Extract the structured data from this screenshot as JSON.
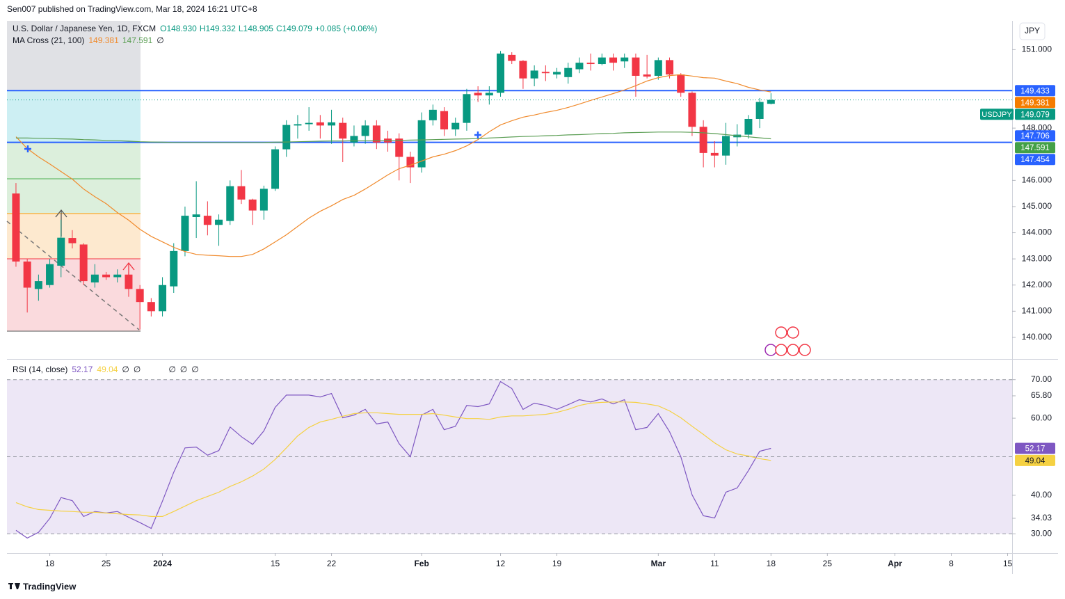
{
  "header": "Sen007 published on TradingView.com, Mar 18, 2024 16:21 UTC+8",
  "footer": "TradingView",
  "currency_button": "JPY",
  "chart_data": [
    {
      "type": "candlestick",
      "title": "U.S. Dollar / Japanese Yen, 1D, FXCM",
      "ohlc": [
        "O148.930",
        "H149.332",
        "L148.905",
        "C149.079",
        "+0.085 (+0.06%)"
      ],
      "indicator": {
        "name": "MA Cross (21, 100)",
        "values": [
          "149.381",
          "147.591",
          "∅"
        ]
      },
      "up_color": "#089981",
      "down_color": "#f23645",
      "x": [
        -3,
        -2,
        -1,
        0,
        1,
        2,
        3,
        4,
        5,
        6,
        7,
        8,
        9,
        10,
        11,
        12,
        13,
        14,
        15,
        16,
        17,
        18,
        19,
        20,
        21,
        22,
        23,
        24,
        25,
        26,
        27,
        28,
        29,
        30,
        31,
        32,
        33,
        34,
        35,
        36,
        37,
        38,
        39,
        40,
        41,
        42,
        43,
        44,
        45,
        46,
        47,
        48,
        49,
        50,
        51,
        52,
        53,
        54,
        55,
        56,
        57,
        58,
        59,
        60,
        61,
        62,
        63,
        64
      ],
      "open": [
        145.5,
        142.9,
        141.85,
        142.0,
        142.74,
        143.8,
        143.55,
        142.1,
        142.4,
        142.3,
        142.4,
        141.85,
        141.35,
        141.0,
        141.95,
        143.3,
        144.6,
        144.65,
        144.3,
        144.45,
        145.78,
        145.27,
        144.85,
        145.68,
        147.19,
        148.1,
        148.15,
        148.22,
        148.1,
        148.2,
        147.45,
        147.7,
        148.1,
        147.6,
        147.6,
        146.9,
        146.5,
        148.3,
        148.65,
        147.95,
        148.2,
        149.35,
        149.25,
        149.35,
        150.8,
        150.57,
        149.9,
        150.15,
        150.05,
        149.95,
        150.25,
        150.5,
        150.45,
        150.7,
        150.55,
        150.7,
        150.05,
        150.0,
        150.6,
        150.05,
        149.35,
        148.05,
        147.05,
        146.95,
        147.65,
        147.75,
        148.35,
        148.93
      ],
      "high": [
        145.9,
        143.0,
        142.4,
        143.0,
        144.5,
        144.1,
        143.6,
        142.8,
        142.5,
        142.6,
        142.5,
        142.0,
        141.5,
        142.3,
        143.6,
        145.0,
        145.97,
        145.2,
        144.7,
        146.0,
        146.4,
        145.3,
        145.8,
        147.3,
        148.3,
        148.5,
        148.8,
        148.5,
        148.7,
        148.4,
        148.1,
        148.3,
        148.3,
        147.9,
        147.8,
        147.1,
        148.6,
        148.9,
        148.8,
        148.4,
        149.5,
        149.6,
        149.6,
        150.95,
        150.9,
        150.6,
        150.4,
        150.4,
        150.3,
        150.5,
        150.7,
        150.85,
        150.85,
        150.85,
        150.85,
        150.85,
        150.8,
        150.7,
        150.7,
        150.1,
        149.4,
        148.3,
        147.5,
        148.2,
        148.15,
        148.5,
        149.15,
        149.332
      ],
      "low": [
        142.7,
        140.95,
        141.4,
        141.9,
        142.3,
        143.4,
        142.0,
        141.9,
        142.2,
        142.1,
        141.55,
        140.3,
        140.8,
        140.8,
        141.7,
        143.1,
        143.8,
        143.9,
        143.5,
        144.3,
        145.1,
        144.3,
        144.5,
        145.6,
        146.9,
        147.6,
        147.9,
        147.6,
        147.4,
        146.7,
        147.3,
        147.4,
        147.2,
        147.1,
        146.0,
        145.9,
        146.3,
        148.1,
        147.7,
        147.7,
        147.9,
        149.0,
        148.9,
        149.2,
        150.45,
        149.5,
        149.6,
        149.8,
        149.9,
        149.7,
        150.1,
        150.2,
        150.4,
        150.2,
        150.3,
        149.2,
        149.9,
        149.85,
        149.9,
        149.2,
        147.7,
        146.5,
        146.5,
        146.6,
        147.3,
        147.6,
        148.0,
        148.905
      ],
      "close": [
        142.9,
        141.9,
        142.15,
        142.8,
        143.81,
        143.6,
        142.15,
        142.4,
        142.3,
        142.4,
        141.85,
        141.35,
        141.0,
        142.0,
        143.3,
        144.65,
        144.7,
        144.3,
        144.5,
        145.78,
        145.27,
        144.85,
        145.68,
        147.19,
        148.12,
        148.15,
        148.2,
        148.1,
        148.22,
        147.6,
        147.7,
        148.1,
        147.45,
        147.45,
        146.9,
        146.5,
        148.3,
        148.7,
        147.95,
        148.2,
        149.3,
        149.25,
        149.35,
        150.85,
        150.57,
        149.9,
        150.2,
        150.1,
        150.15,
        150.3,
        150.5,
        150.45,
        150.7,
        150.5,
        150.7,
        150.0,
        149.97,
        150.6,
        150.05,
        149.35,
        148.05,
        147.05,
        146.95,
        147.7,
        147.75,
        148.35,
        149.0,
        149.079
      ],
      "series": [
        {
          "color": "#f08a2c",
          "values": [
            147.67,
            147.22,
            146.9,
            146.63,
            146.34,
            146.05,
            145.67,
            145.38,
            145.11,
            144.77,
            144.48,
            144.13,
            143.86,
            143.65,
            143.44,
            143.28,
            143.17,
            143.14,
            143.12,
            143.09,
            143.09,
            143.17,
            143.38,
            143.65,
            143.92,
            144.24,
            144.56,
            144.82,
            145.03,
            145.27,
            145.43,
            145.67,
            145.94,
            146.21,
            146.45,
            146.58,
            146.74,
            146.9,
            147.0,
            147.14,
            147.32,
            147.56,
            147.86,
            148.12,
            148.28,
            148.42,
            148.5,
            148.6,
            148.68,
            148.79,
            148.92,
            149.06,
            149.19,
            149.32,
            149.46,
            149.62,
            149.8,
            149.93,
            150.01,
            150.04,
            149.99,
            149.93,
            149.91,
            149.8,
            149.7,
            149.56,
            149.46,
            149.381
          ]
        },
        {
          "color": "#5b9e54",
          "values": [
            147.62,
            147.62,
            147.61,
            147.6,
            147.59,
            147.58,
            147.56,
            147.55,
            147.53,
            147.52,
            147.5,
            147.48,
            147.47,
            147.46,
            147.45,
            147.45,
            147.45,
            147.45,
            147.45,
            147.45,
            147.45,
            147.45,
            147.45,
            147.46,
            147.47,
            147.48,
            147.49,
            147.5,
            147.51,
            147.51,
            147.52,
            147.52,
            147.53,
            147.53,
            147.53,
            147.54,
            147.55,
            147.56,
            147.57,
            147.58,
            147.59,
            147.6,
            147.62,
            147.64,
            147.66,
            147.68,
            147.69,
            147.71,
            147.72,
            147.74,
            147.75,
            147.77,
            147.79,
            147.8,
            147.82,
            147.83,
            147.84,
            147.85,
            147.85,
            147.85,
            147.84,
            147.82,
            147.79,
            147.75,
            147.71,
            147.67,
            147.63,
            147.591
          ]
        }
      ],
      "hlines": [
        {
          "value": 149.433,
          "color": "#2962ff"
        },
        {
          "value": 147.454,
          "color": "#2962ff"
        }
      ],
      "price_labels": [
        {
          "value": 149.433,
          "label": "149.433",
          "color": "#2962ff"
        },
        {
          "value": 149.381,
          "label": "149.381",
          "color": "#f57c00"
        },
        {
          "value": 149.079,
          "label": "149.079",
          "color": "#089981",
          "tag": "USDJPY"
        },
        {
          "value": 147.706,
          "label": "147.706",
          "color": "#2962ff"
        },
        {
          "value": 147.591,
          "label": "147.591",
          "color": "#43a047"
        },
        {
          "value": 147.454,
          "label": "147.454",
          "color": "#2962ff"
        }
      ],
      "xlim": [
        -3.8,
        85.4
      ],
      "ylim": [
        139.2,
        152.1
      ],
      "yticks": [
        {
          "value": 151,
          "label": "151.000"
        },
        {
          "value": 148,
          "label": "148.000"
        },
        {
          "value": 146,
          "label": "146.000"
        },
        {
          "value": 145,
          "label": "145.000"
        },
        {
          "value": 144,
          "label": "144.000"
        },
        {
          "value": 143,
          "label": "143.000"
        },
        {
          "value": 142,
          "label": "142.000"
        },
        {
          "value": 141,
          "label": "141.000"
        },
        {
          "value": 140,
          "label": "140.000"
        }
      ],
      "xticks": [
        {
          "value": 0,
          "label": "18"
        },
        {
          "value": 5,
          "label": "25"
        },
        {
          "value": 10,
          "label": "2024"
        },
        {
          "value": 20,
          "label": "15"
        },
        {
          "value": 25,
          "label": "22"
        },
        {
          "value": 33,
          "label": "Feb"
        },
        {
          "value": 40,
          "label": "12"
        },
        {
          "value": 45,
          "label": "19"
        },
        {
          "value": 54,
          "label": "Mar"
        },
        {
          "value": 59,
          "label": "11"
        },
        {
          "value": 64,
          "label": "18"
        },
        {
          "value": 69,
          "label": "25"
        },
        {
          "value": 75,
          "label": "Apr"
        },
        {
          "value": 80,
          "label": "8"
        },
        {
          "value": 85,
          "label": "15"
        }
      ]
    },
    {
      "type": "line",
      "title": "RSI (14, close)",
      "legend_values": [
        "52.17",
        "49.04",
        "∅",
        "∅",
        "∅",
        "∅",
        "∅"
      ],
      "series": [
        {
          "color": "#7e57c2",
          "values": [
            30.9,
            28.9,
            30.4,
            34.0,
            39.4,
            38.6,
            34.5,
            35.8,
            35.4,
            35.8,
            34.3,
            32.9,
            31.4,
            38.5,
            46.0,
            52.3,
            52.5,
            50.4,
            51.6,
            57.7,
            55.2,
            53.2,
            56.7,
            62.8,
            66.0,
            66.0,
            66.0,
            65.5,
            66.4,
            60.1,
            60.8,
            62.3,
            58.5,
            59.0,
            53.4,
            50.0,
            60.8,
            62.3,
            57.0,
            57.9,
            63.3,
            63.0,
            63.7,
            69.5,
            67.7,
            62.3,
            63.9,
            63.3,
            62.3,
            63.5,
            64.8,
            64.2,
            65.0,
            63.7,
            64.8,
            57.0,
            57.6,
            61.2,
            56.5,
            50.0,
            40.1,
            34.7,
            34.1,
            40.8,
            41.9,
            46.4,
            51.4,
            52.17
          ]
        },
        {
          "color": "#f5d142",
          "values": [
            38.1,
            37.0,
            36.3,
            36.1,
            35.9,
            35.8,
            35.6,
            35.6,
            35.4,
            35.2,
            35.0,
            34.9,
            34.5,
            34.5,
            35.8,
            37.2,
            38.6,
            39.7,
            40.8,
            42.3,
            43.5,
            45.0,
            46.8,
            49.3,
            52.3,
            55.4,
            57.6,
            59.0,
            59.7,
            60.5,
            61.2,
            61.4,
            61.4,
            61.2,
            61.0,
            61.0,
            61.0,
            61.2,
            60.8,
            60.3,
            59.9,
            59.9,
            59.7,
            60.3,
            60.6,
            60.6,
            60.8,
            61.0,
            61.5,
            62.3,
            63.3,
            63.9,
            64.1,
            64.2,
            64.2,
            64.1,
            63.7,
            63.2,
            61.9,
            60.1,
            57.9,
            55.8,
            53.6,
            51.8,
            50.7,
            50.2,
            49.5,
            49.04
          ]
        }
      ],
      "value_labels": [
        {
          "value": 52.17,
          "label": "52.17",
          "color": "#7e57c2"
        },
        {
          "value": 49.04,
          "label": "49.04",
          "color": "#f5d142"
        }
      ],
      "levels": [
        70,
        50,
        30
      ],
      "band_color": "#ede7f6",
      "ylim": [
        25,
        75
      ],
      "yticks": [
        {
          "value": 70,
          "label": "70.00"
        },
        {
          "value": 65.8,
          "label": "65.80"
        },
        {
          "value": 60,
          "label": "60.00"
        },
        {
          "value": 40,
          "label": "40.00"
        },
        {
          "value": 34.03,
          "label": "34.03"
        },
        {
          "value": 30,
          "label": "30.00"
        }
      ]
    }
  ]
}
